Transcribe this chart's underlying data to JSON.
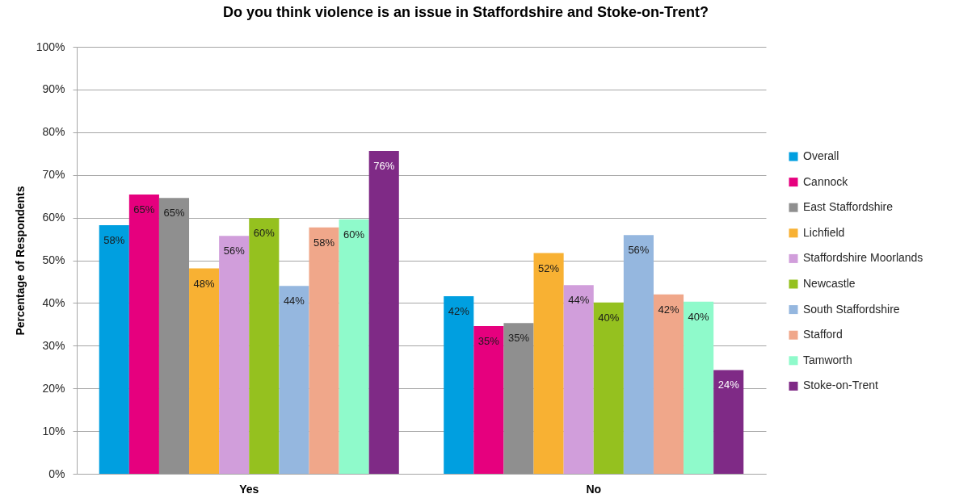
{
  "chart_data": {
    "type": "bar",
    "title": "Do you think violence is an issue in Staffordshire and Stoke-on-Trent?",
    "ylabel": "Percentage of Respondents",
    "categories": [
      "Yes",
      "No"
    ],
    "series": [
      {
        "name": "Overall",
        "color": "#009fe0",
        "values": [
          58.2,
          41.6
        ],
        "value_labels": [
          "58%",
          "42%"
        ]
      },
      {
        "name": "Cannock",
        "color": "#e6007e",
        "values": [
          65.4,
          34.6
        ],
        "value_labels": [
          "65%",
          "35%"
        ]
      },
      {
        "name": "East Staffordshire",
        "color": "#8f8f8f",
        "values": [
          64.6,
          35.3
        ],
        "value_labels": [
          "65%",
          "35%"
        ]
      },
      {
        "name": "Lichfield",
        "color": "#f8b133",
        "values": [
          48.1,
          51.7
        ],
        "value_labels": [
          "48%",
          "52%"
        ]
      },
      {
        "name": "Staffordshire Moorlands",
        "color": "#d19edb",
        "values": [
          55.7,
          44.2
        ],
        "value_labels": [
          "56%",
          "44%"
        ]
      },
      {
        "name": "Newcastle",
        "color": "#95c11f",
        "values": [
          59.9,
          40.1
        ],
        "value_labels": [
          "60%",
          "40%"
        ]
      },
      {
        "name": "South Staffordshire",
        "color": "#95b7df",
        "values": [
          44.0,
          55.9
        ],
        "value_labels": [
          "44%",
          "56%"
        ]
      },
      {
        "name": "Stafford",
        "color": "#f0a78a",
        "values": [
          57.7,
          42.0
        ],
        "value_labels": [
          "58%",
          "42%"
        ]
      },
      {
        "name": "Tamworth",
        "color": "#8ffacb",
        "values": [
          59.6,
          40.3
        ],
        "value_labels": [
          "60%",
          "40%"
        ]
      },
      {
        "name": "Stoke-on-Trent",
        "color": "#7f2a86",
        "values": [
          75.6,
          24.3
        ],
        "value_labels": [
          "76%",
          "24%"
        ]
      }
    ],
    "ylim": [
      0,
      100
    ],
    "yticks": [
      {
        "value": 0,
        "label": "0%"
      },
      {
        "value": 10,
        "label": "10%"
      },
      {
        "value": 20,
        "label": "20%"
      },
      {
        "value": 30,
        "label": "30%"
      },
      {
        "value": 40,
        "label": "40%"
      },
      {
        "value": 50,
        "label": "50%"
      },
      {
        "value": 60,
        "label": "60%"
      },
      {
        "value": 70,
        "label": "70%"
      },
      {
        "value": 80,
        "label": "80%"
      },
      {
        "value": 90,
        "label": "90%"
      },
      {
        "value": 100,
        "label": "100%"
      }
    ],
    "grid": "y",
    "legend": "right"
  }
}
